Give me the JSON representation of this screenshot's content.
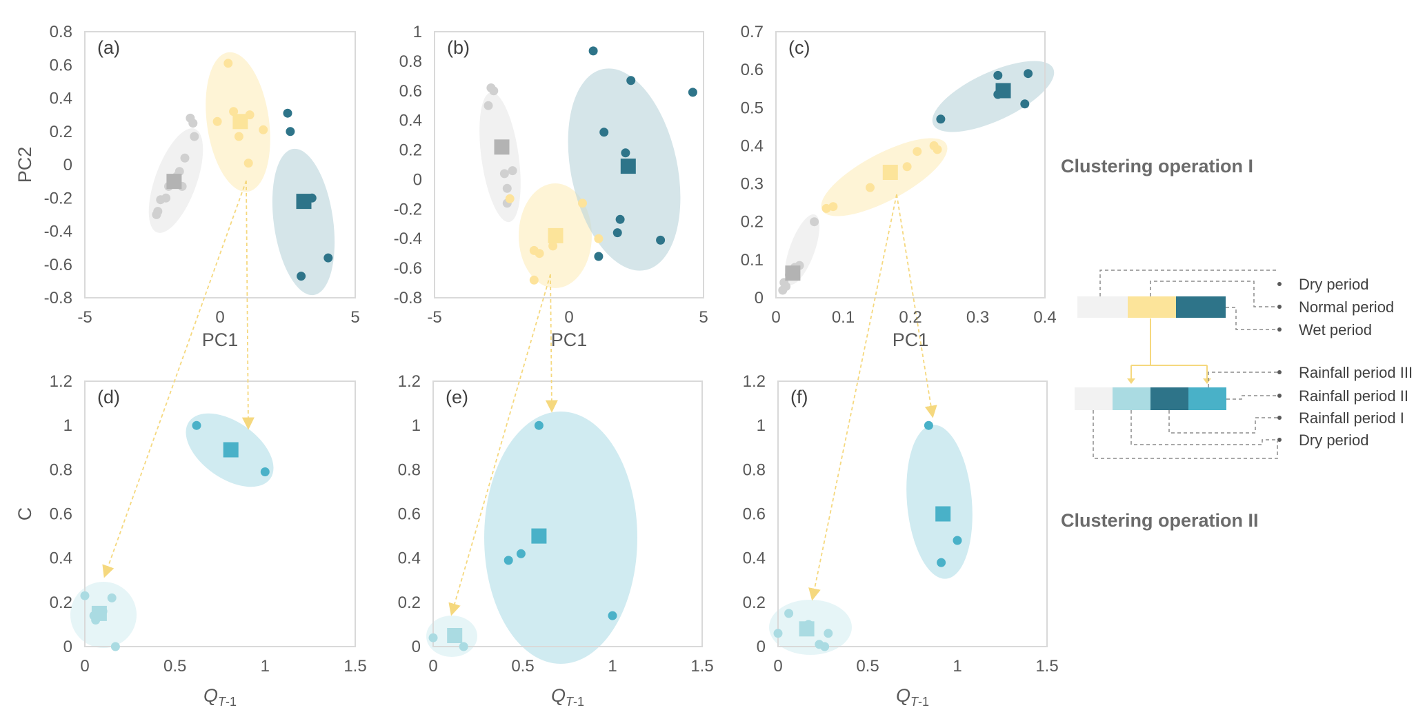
{
  "colors": {
    "dry": "#d9d9d9",
    "dry_pt": "#d0d0d0",
    "dry_ctr": "#b3b3b3",
    "normal": "#fce49a",
    "normal_pt": "#fde39b",
    "wet": "#2e7489",
    "wet_light": "#aadbe2",
    "rain_mid": "#49b1c8",
    "rain_dark": "#2e7489",
    "arrow": "#f5d87e",
    "frame": "#d9d9d9",
    "connector": "#8c8c8c"
  },
  "operation_titles": {
    "op1": "Clustering operation I",
    "op2": "Clustering operation II"
  },
  "legend": {
    "top": [
      "Dry period",
      "Normal period",
      "Wet period"
    ],
    "bottom": [
      "Rainfall  period III",
      "Rainfall  period II",
      "Rainfall  period I",
      "Dry period"
    ]
  },
  "chart_data": [
    {
      "id": "a",
      "label": "(a)",
      "type": "scatter",
      "xlabel": "PC1",
      "ylabel": "PC2",
      "xlim": [
        -5,
        5
      ],
      "ylim": [
        -0.8,
        0.8
      ],
      "xticks": [
        "-5",
        "0",
        "5"
      ],
      "yticks": [
        "0.8",
        "0.6",
        "0.4",
        "0.2",
        "0",
        "-0.2",
        "-0.4",
        "-0.6",
        "-0.8"
      ],
      "series": [
        {
          "name": "Dry period",
          "points": [
            [
              -1.1,
              0.28
            ],
            [
              -1.0,
              0.25
            ],
            [
              -0.95,
              0.17
            ],
            [
              -1.3,
              0.04
            ],
            [
              -1.5,
              -0.04
            ],
            [
              -1.6,
              -0.07
            ],
            [
              -1.4,
              -0.13
            ],
            [
              -1.9,
              -0.13
            ],
            [
              -2.0,
              -0.2
            ],
            [
              -2.2,
              -0.21
            ],
            [
              -2.3,
              -0.28
            ],
            [
              -2.35,
              -0.3
            ]
          ],
          "center": [
            -1.7,
            -0.1
          ]
        },
        {
          "name": "Normal period",
          "points": [
            [
              0.3,
              0.61
            ],
            [
              0.5,
              0.32
            ],
            [
              1.1,
              0.3
            ],
            [
              1.6,
              0.21
            ],
            [
              -0.1,
              0.26
            ],
            [
              0.7,
              0.17
            ],
            [
              1.05,
              0.01
            ]
          ],
          "center": [
            0.75,
            0.26
          ]
        },
        {
          "name": "Wet period",
          "points": [
            [
              2.5,
              0.31
            ],
            [
              2.6,
              0.2
            ],
            [
              3.4,
              -0.2
            ],
            [
              3.0,
              -0.67
            ],
            [
              4.0,
              -0.56
            ]
          ],
          "center": [
            3.1,
            -0.22
          ]
        }
      ]
    },
    {
      "id": "b",
      "label": "(b)",
      "type": "scatter",
      "xlabel": "PC1",
      "ylabel": "",
      "xlim": [
        -5,
        5
      ],
      "ylim": [
        -0.8,
        1
      ],
      "xticks": [
        "-5",
        "0",
        "5"
      ],
      "yticks": [
        "1",
        "0.8",
        "0.6",
        "0.4",
        "0.2",
        "0",
        "-0.2",
        "-0.4",
        "-0.6",
        "-0.8"
      ],
      "series": [
        {
          "name": "Dry period",
          "points": [
            [
              -2.9,
              0.62
            ],
            [
              -2.8,
              0.6
            ],
            [
              -3.0,
              0.5
            ],
            [
              -2.1,
              0.06
            ],
            [
              -2.4,
              0.04
            ],
            [
              -2.3,
              -0.06
            ],
            [
              -2.3,
              -0.16
            ]
          ],
          "center": [
            -2.5,
            0.22
          ]
        },
        {
          "name": "Normal period",
          "points": [
            [
              -2.2,
              -0.13
            ],
            [
              0.5,
              -0.16
            ],
            [
              -1.3,
              -0.48
            ],
            [
              -1.1,
              -0.5
            ],
            [
              -0.6,
              -0.45
            ],
            [
              1.1,
              -0.4
            ],
            [
              -1.3,
              -0.68
            ]
          ],
          "center": [
            -0.5,
            -0.38
          ]
        },
        {
          "name": "Wet period",
          "points": [
            [
              0.9,
              0.87
            ],
            [
              2.3,
              0.67
            ],
            [
              4.6,
              0.59
            ],
            [
              1.3,
              0.32
            ],
            [
              2.1,
              0.18
            ],
            [
              1.9,
              -0.27
            ],
            [
              1.8,
              -0.36
            ],
            [
              3.4,
              -0.41
            ],
            [
              1.1,
              -0.52
            ]
          ],
          "center": [
            2.2,
            0.09
          ]
        }
      ]
    },
    {
      "id": "c",
      "label": "(c)",
      "type": "scatter",
      "xlabel": "PC1",
      "ylabel": "",
      "xlim": [
        0,
        0.4
      ],
      "ylim": [
        0,
        0.7
      ],
      "xticks": [
        "0",
        "0.1",
        "0.2",
        "0.3",
        "0.4"
      ],
      "yticks": [
        "0.7",
        "0.6",
        "0.5",
        "0.4",
        "0.3",
        "0.2",
        "0.1",
        "0"
      ],
      "series": [
        {
          "name": "Dry period",
          "points": [
            [
              0.057,
              0.2
            ],
            [
              0.035,
              0.085
            ],
            [
              0.028,
              0.08
            ],
            [
              0.02,
              0.06
            ],
            [
              0.012,
              0.04
            ],
            [
              0.015,
              0.03
            ],
            [
              0.01,
              0.02
            ]
          ],
          "center": [
            0.025,
            0.065
          ]
        },
        {
          "name": "Normal period",
          "points": [
            [
              0.235,
              0.4
            ],
            [
              0.24,
              0.39
            ],
            [
              0.21,
              0.385
            ],
            [
              0.195,
              0.345
            ],
            [
              0.14,
              0.29
            ],
            [
              0.085,
              0.24
            ],
            [
              0.075,
              0.235
            ]
          ],
          "center": [
            0.17,
            0.33
          ]
        },
        {
          "name": "Wet period",
          "points": [
            [
              0.33,
              0.585
            ],
            [
              0.375,
              0.59
            ],
            [
              0.33,
              0.535
            ],
            [
              0.37,
              0.51
            ],
            [
              0.245,
              0.47
            ]
          ],
          "center": [
            0.338,
            0.545
          ]
        }
      ]
    },
    {
      "id": "d",
      "label": "(d)",
      "type": "scatter",
      "xlabel": "QT-1",
      "ylabel": "C",
      "xlim": [
        0,
        1.5
      ],
      "ylim": [
        0,
        1.2
      ],
      "xticks": [
        "0",
        "0.5",
        "1",
        "1.5"
      ],
      "yticks": [
        "1.2",
        "1",
        "0.8",
        "0.6",
        "0.4",
        "0.2",
        "0"
      ],
      "series": [
        {
          "name": "Dry period",
          "points": [
            [
              0.0,
              0.23
            ],
            [
              0.15,
              0.22
            ],
            [
              0.05,
              0.14
            ],
            [
              0.06,
              0.12
            ],
            [
              0.1,
              0.16
            ],
            [
              0.17,
              0.0
            ]
          ],
          "center": [
            0.08,
            0.15
          ]
        },
        {
          "name": "Rainfall  period I",
          "points": [
            [
              0.62,
              1.0
            ],
            [
              1.0,
              0.79
            ]
          ],
          "center": [
            0.81,
            0.89
          ]
        }
      ]
    },
    {
      "id": "e",
      "label": "(e)",
      "type": "scatter",
      "xlabel": "QT-1",
      "ylabel": "",
      "xlim": [
        0,
        1.5
      ],
      "ylim": [
        0,
        1.2
      ],
      "xticks": [
        "0",
        "0.5",
        "1",
        "1.5"
      ],
      "yticks": [
        "1.2",
        "1",
        "0.8",
        "0.6",
        "0.4",
        "0.2",
        "0"
      ],
      "series": [
        {
          "name": "Dry period",
          "points": [
            [
              0.0,
              0.04
            ],
            [
              0.17,
              0.0
            ]
          ],
          "center": [
            0.12,
            0.05
          ]
        },
        {
          "name": "Rainfall  period I",
          "points": [
            [
              0.59,
              1.0
            ],
            [
              0.42,
              0.39
            ],
            [
              0.49,
              0.42
            ],
            [
              1.0,
              0.14
            ]
          ],
          "center": [
            0.59,
            0.5
          ]
        }
      ]
    },
    {
      "id": "f",
      "label": "(f)",
      "type": "scatter",
      "xlabel": "QT-1",
      "ylabel": "",
      "xlim": [
        0,
        1.5
      ],
      "ylim": [
        0,
        1.2
      ],
      "xticks": [
        "0",
        "0.5",
        "1",
        "1.5"
      ],
      "yticks": [
        "1.2",
        "1",
        "0.8",
        "0.6",
        "0.4",
        "0.2",
        "0"
      ],
      "series": [
        {
          "name": "Dry period",
          "points": [
            [
              0.06,
              0.15
            ],
            [
              0.0,
              0.06
            ],
            [
              0.17,
              0.1
            ],
            [
              0.28,
              0.06
            ],
            [
              0.23,
              0.01
            ],
            [
              0.26,
              0.0
            ]
          ],
          "center": [
            0.16,
            0.08
          ]
        },
        {
          "name": "Rainfall  period I",
          "points": [
            [
              0.84,
              1.0
            ],
            [
              1.0,
              0.48
            ],
            [
              0.91,
              0.38
            ]
          ],
          "center": [
            0.92,
            0.6
          ]
        }
      ]
    }
  ]
}
